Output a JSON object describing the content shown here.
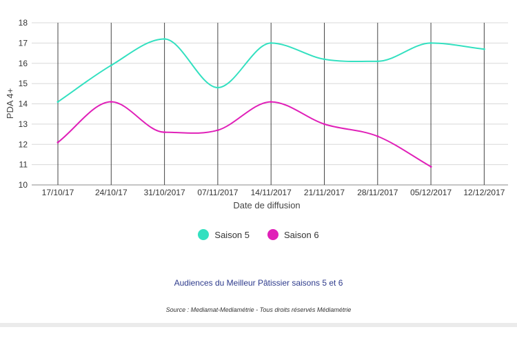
{
  "chart_data": {
    "type": "line",
    "xlabel": "Date de diffusion",
    "ylabel": "PDA 4+",
    "ylim": [
      10,
      18
    ],
    "yticks": [
      10,
      11,
      12,
      13,
      14,
      15,
      16,
      17,
      18
    ],
    "categories": [
      "17/10/17",
      "24/10/17",
      "31/10/2017",
      "07/11/2017",
      "14/11/2017",
      "21/11/2017",
      "28/11/2017",
      "05/12/2017",
      "12/12/2017"
    ],
    "series": [
      {
        "name": "Saison 5",
        "color": "#33e0c0",
        "values": [
          14.1,
          15.9,
          17.2,
          14.8,
          17.0,
          16.2,
          16.1,
          17.0,
          16.7
        ]
      },
      {
        "name": "Saison 6",
        "color": "#e020b8",
        "values": [
          12.1,
          14.1,
          12.6,
          12.7,
          14.1,
          13.0,
          12.4,
          10.9,
          null
        ]
      }
    ],
    "grid": true,
    "legend": "bottom"
  },
  "footer": {
    "title": "Audiences du Meilleur Pâtissier saisons 5 et 6",
    "source": "Source : Mediamat-Mediamétrie - Tous droits réservés Médiamétrie"
  }
}
